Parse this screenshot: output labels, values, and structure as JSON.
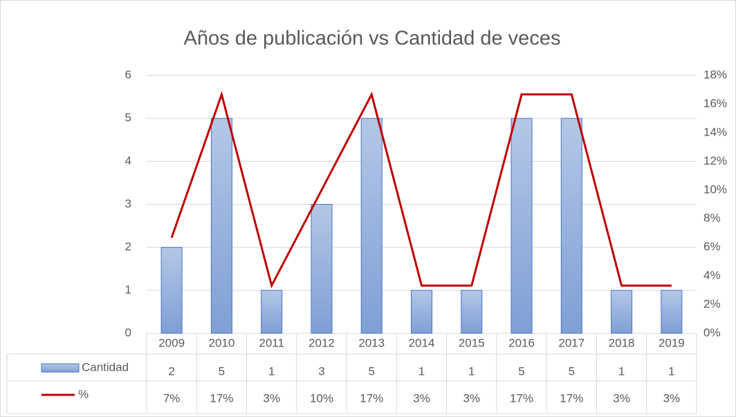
{
  "chart_data": {
    "type": "bar",
    "title": "Años de publicación vs Cantidad de veces",
    "categories": [
      "2009",
      "2010",
      "2011",
      "2012",
      "2013",
      "2014",
      "2015",
      "2016",
      "2017",
      "2018",
      "2019"
    ],
    "series": [
      {
        "name": "Cantidad",
        "type": "bar",
        "color": "#8faadc",
        "values": [
          2,
          5,
          1,
          3,
          5,
          1,
          1,
          5,
          5,
          1,
          1
        ]
      },
      {
        "name": "%",
        "type": "line",
        "axis": "y2",
        "color": "#c00000",
        "values": [
          6.67,
          16.67,
          3.33,
          10,
          16.67,
          3.33,
          3.33,
          16.67,
          16.67,
          3.33,
          3.33
        ],
        "value_labels": [
          "7%",
          "17%",
          "3%",
          "10%",
          "17%",
          "3%",
          "3%",
          "17%",
          "17%",
          "3%",
          "3%"
        ]
      }
    ],
    "ylim": [
      0,
      6
    ],
    "yticks": [
      0,
      1,
      2,
      3,
      4,
      5,
      6
    ],
    "y2lim": [
      0,
      18
    ],
    "y2ticks": [
      {
        "value": 0,
        "label": "0%"
      },
      {
        "value": 2,
        "label": "2%"
      },
      {
        "value": 4,
        "label": "4%"
      },
      {
        "value": 6,
        "label": "6%"
      },
      {
        "value": 8,
        "label": "8%"
      },
      {
        "value": 10,
        "label": "10%"
      },
      {
        "value": 12,
        "label": "12%"
      },
      {
        "value": 14,
        "label": "14%"
      },
      {
        "value": 16,
        "label": "16%"
      },
      {
        "value": 18,
        "label": "18%"
      }
    ],
    "grid": true,
    "data_table": true
  }
}
